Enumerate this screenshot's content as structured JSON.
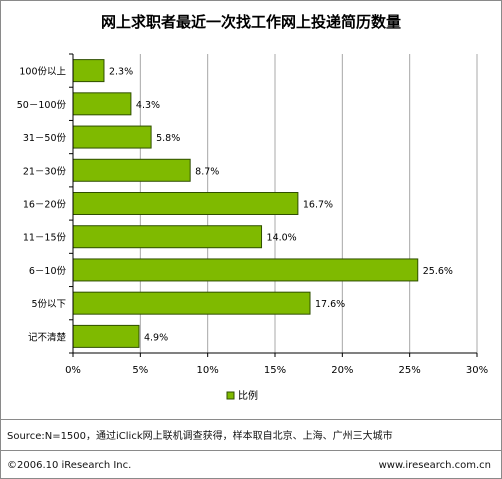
{
  "chart_data": {
    "type": "bar",
    "orientation": "horizontal",
    "title": "网上求职者最近一次找工作网上投递简历数量",
    "categories": [
      "100份以上",
      "50－100份",
      "31－50份",
      "21－30份",
      "16－20份",
      "11－15份",
      "6－10份",
      "5份以下",
      "记不清楚"
    ],
    "series": [
      {
        "name": "比例",
        "values": [
          2.3,
          4.3,
          5.8,
          8.7,
          16.7,
          14.0,
          25.6,
          17.6,
          4.9
        ],
        "labels": [
          "2.3%",
          "4.3%",
          "5.8%",
          "8.7%",
          "16.7%",
          "14.0%",
          "25.6%",
          "17.6%",
          "4.9%"
        ]
      }
    ],
    "xlim": [
      0,
      30
    ],
    "xticks": [
      0,
      5,
      10,
      15,
      20,
      25,
      30
    ],
    "xtick_labels": [
      "0%",
      "5%",
      "10%",
      "15%",
      "20%",
      "25%",
      "30%"
    ],
    "grid": "vertical",
    "legend": "bottom-center",
    "bar_color": "#7fba00",
    "bar_border_color": "#2f4f00"
  },
  "footer": {
    "source": "Source:N=1500，通过iClick网上联机调查获得，样本取自北京、上海、广州三大城市",
    "copyright": "©2006.10 iResearch Inc.",
    "website": "www.iresearch.com.cn"
  }
}
